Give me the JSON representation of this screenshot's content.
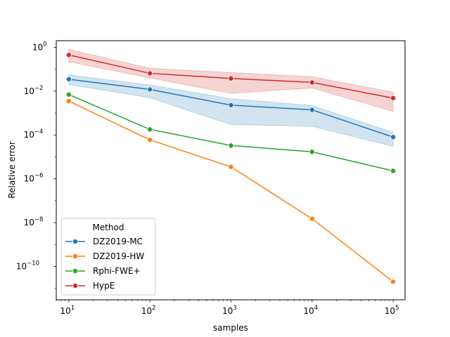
{
  "chart_data": {
    "type": "line",
    "title": "",
    "xlabel": "samples",
    "ylabel": "Relative error",
    "xscale": "log",
    "yscale": "log",
    "xlim": [
      7,
      140000
    ],
    "ylim": [
      3e-12,
      2
    ],
    "x": [
      10,
      100,
      1000,
      10000,
      100000
    ],
    "x_ticks": [
      {
        "value": 10,
        "base": "10",
        "exp": "1"
      },
      {
        "value": 100,
        "base": "10",
        "exp": "2"
      },
      {
        "value": 1000,
        "base": "10",
        "exp": "3"
      },
      {
        "value": 10000,
        "base": "10",
        "exp": "4"
      },
      {
        "value": 100000,
        "base": "10",
        "exp": "5"
      }
    ],
    "y_ticks": [
      {
        "value": 1,
        "base": "10",
        "exp": "0"
      },
      {
        "value": 0.01,
        "base": "10",
        "exp": "−2"
      },
      {
        "value": 0.0001,
        "base": "10",
        "exp": "−4"
      },
      {
        "value": 1e-06,
        "base": "10",
        "exp": "−6"
      },
      {
        "value": 1e-08,
        "base": "10",
        "exp": "−8"
      },
      {
        "value": 1e-10,
        "base": "10",
        "exp": "−10"
      }
    ],
    "grid": false,
    "legend": {
      "title": "Method",
      "placement": "lower-left"
    },
    "series": [
      {
        "name": "DZ2019-MC",
        "color": "#1f77b4",
        "values": [
          0.035,
          0.012,
          0.0023,
          0.0014,
          8e-05
        ],
        "ci_low": [
          0.02,
          0.005,
          0.0003,
          0.00025,
          3e-05
        ],
        "ci_high": [
          0.055,
          0.019,
          0.0045,
          0.0022,
          0.00013
        ]
      },
      {
        "name": "DZ2019-HW",
        "color": "#ff7f0e",
        "values": [
          0.0035,
          6e-05,
          3.5e-06,
          1.5e-08,
          2e-11
        ]
      },
      {
        "name": "Rphi-FWE+",
        "color": "#2ca02c",
        "values": [
          0.007,
          0.00018,
          3.3e-05,
          1.7e-05,
          2.3e-06
        ]
      },
      {
        "name": "HypE",
        "color": "#d62728",
        "values": [
          0.45,
          0.065,
          0.038,
          0.025,
          0.0048
        ],
        "ci_low": [
          0.22,
          0.04,
          0.008,
          0.014,
          0.0012
        ],
        "ci_high": [
          0.8,
          0.11,
          0.07,
          0.045,
          0.009
        ]
      }
    ]
  }
}
